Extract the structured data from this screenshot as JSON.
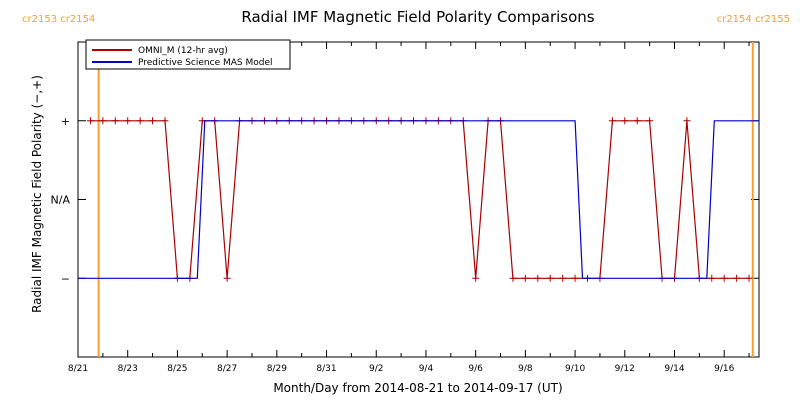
{
  "chart_data": {
    "type": "line",
    "title": "Radial IMF Magnetic Field Polarity Comparisons",
    "xlabel": "Month/Day from 2014-08-21 to 2014-09-17 (UT)",
    "ylabel": "Radial IMF Magnetic Field Polarity (−,+)",
    "x_start": "2014-08-21",
    "xlim_days": [
      0,
      27.4
    ],
    "ylim": [
      -2,
      2
    ],
    "y_ticks": [
      {
        "value": 1,
        "label": "+"
      },
      {
        "value": 0,
        "label": "N/A"
      },
      {
        "value": -1,
        "label": "−"
      }
    ],
    "x_ticks": [
      {
        "day": 0,
        "label": "8/21"
      },
      {
        "day": 2,
        "label": "8/23"
      },
      {
        "day": 4,
        "label": "8/25"
      },
      {
        "day": 6,
        "label": "8/27"
      },
      {
        "day": 8,
        "label": "8/29"
      },
      {
        "day": 10,
        "label": "8/31"
      },
      {
        "day": 12,
        "label": "9/2"
      },
      {
        "day": 14,
        "label": "9/4"
      },
      {
        "day": 16,
        "label": "9/6"
      },
      {
        "day": 18,
        "label": "9/8"
      },
      {
        "day": 20,
        "label": "9/10"
      },
      {
        "day": 22,
        "label": "9/12"
      },
      {
        "day": 24,
        "label": "9/14"
      },
      {
        "day": 26,
        "label": "9/16"
      }
    ],
    "carrington_markers": [
      {
        "day": 0.83,
        "label": "cr2153 cr2154",
        "side": "left",
        "color": "#f5a030"
      },
      {
        "day": 27.15,
        "label": "cr2154 cr2155",
        "side": "right",
        "color": "#f5a030"
      }
    ],
    "legend_position": "top-left",
    "series": [
      {
        "name": "OMNI_M (12-hr avg)",
        "color": "#aa0000",
        "marker": "plus",
        "x": [
          0.5,
          1.0,
          1.5,
          2.0,
          2.5,
          3.0,
          3.5,
          4.0,
          4.5,
          5.0,
          5.5,
          6.0,
          6.5,
          7.0,
          7.5,
          8.0,
          8.5,
          9.0,
          9.5,
          10.0,
          10.5,
          11.0,
          11.5,
          12.0,
          12.5,
          13.0,
          13.5,
          14.0,
          14.5,
          15.0,
          15.5,
          16.0,
          16.5,
          17.0,
          17.5,
          18.0,
          18.5,
          19.0,
          19.5,
          20.0,
          20.5,
          21.0,
          21.5,
          22.0,
          22.5,
          23.0,
          23.5,
          24.0,
          24.5,
          25.0,
          25.5,
          26.0,
          26.5,
          27.0
        ],
        "y": [
          1,
          1,
          1,
          1,
          1,
          1,
          1,
          -1,
          -1,
          1,
          1,
          -1,
          1,
          1,
          1,
          1,
          1,
          1,
          1,
          1,
          1,
          1,
          1,
          1,
          1,
          1,
          1,
          1,
          1,
          1,
          1,
          -1,
          1,
          1,
          -1,
          -1,
          -1,
          -1,
          -1,
          -1,
          -1,
          -1,
          1,
          1,
          1,
          1,
          -1,
          -1,
          1,
          -1,
          -1,
          -1,
          -1,
          -1
        ]
      },
      {
        "name": "Predictive Science MAS Model",
        "color": "#0000cc",
        "marker": "none",
        "x": [
          0.0,
          4.8,
          5.1,
          20.0,
          20.3,
          25.3,
          25.6,
          27.4
        ],
        "y": [
          -1,
          -1,
          1,
          1,
          -1,
          -1,
          1,
          1
        ]
      }
    ]
  }
}
